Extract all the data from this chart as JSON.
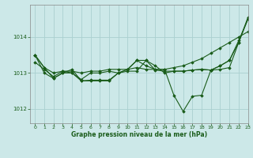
{
  "xlabel": "Graphe pression niveau de la mer (hPa)",
  "bg_color": "#cce8e8",
  "grid_color": "#aad0d0",
  "line_color": "#1a5c1a",
  "ylim": [
    1011.6,
    1014.9
  ],
  "xlim": [
    -0.5,
    23
  ],
  "yticks": [
    1012,
    1013,
    1014
  ],
  "xticks": [
    0,
    1,
    2,
    3,
    4,
    5,
    6,
    7,
    8,
    9,
    10,
    11,
    12,
    13,
    14,
    15,
    16,
    17,
    18,
    19,
    20,
    21,
    22,
    23
  ],
  "series": [
    [
      1013.5,
      1013.15,
      1013.0,
      1013.05,
      1013.05,
      1013.0,
      1013.05,
      1013.05,
      1013.1,
      1013.1,
      1013.1,
      1013.15,
      1013.1,
      1013.1,
      1013.1,
      1013.15,
      1013.2,
      1013.3,
      1013.4,
      1013.55,
      1013.7,
      1013.85,
      1014.0,
      1014.15
    ],
    [
      1013.5,
      1013.15,
      1012.85,
      1013.0,
      1013.0,
      1012.78,
      1012.78,
      1012.78,
      1012.78,
      1013.0,
      1013.1,
      1013.35,
      1013.2,
      1013.1,
      1013.1,
      1012.38,
      1011.93,
      1012.35,
      1012.38,
      1013.08,
      1013.1,
      1013.15,
      1013.85,
      1014.55
    ],
    [
      1013.3,
      1013.1,
      1012.9,
      1013.05,
      1013.0,
      1012.82,
      1013.0,
      1013.0,
      1013.05,
      1013.0,
      1013.05,
      1013.05,
      1013.35,
      1013.2,
      1013.0,
      1013.05,
      1013.05,
      1013.08,
      1013.1,
      1013.08,
      1013.2,
      1013.35,
      1013.9,
      1014.5
    ],
    [
      1013.5,
      1013.0,
      1012.85,
      1013.0,
      1013.1,
      1012.78,
      1012.8,
      1012.8,
      1012.8,
      1013.0,
      1013.1,
      1013.35,
      1013.35,
      1013.08,
      1013.05,
      1013.05,
      1013.05,
      1013.08,
      1013.1,
      1013.08,
      1013.2,
      1013.35,
      1013.85,
      1014.5
    ]
  ]
}
